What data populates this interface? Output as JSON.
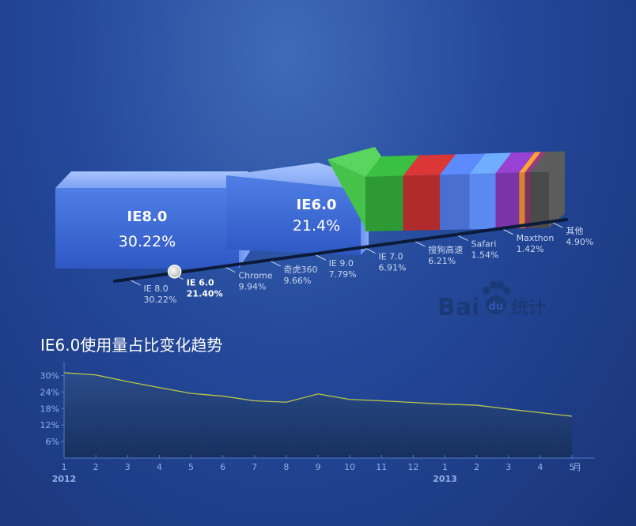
{
  "logo": {
    "text": "Bai",
    "paw_text": "du",
    "suffix": "统计"
  },
  "chart_data": [
    {
      "type": "bar",
      "subtype": "3d-stacked-share",
      "categories": [
        "IE 8.0",
        "IE 6.0",
        "Chrome",
        "奇虎360",
        "IE 9.0",
        "IE 7.0",
        "搜狗高速",
        "Safari",
        "Maxthon",
        "其他"
      ],
      "value_labels": [
        "30.22%",
        "21.40%",
        "9.94%",
        "9.66%",
        "7.79%",
        "6.91%",
        "6.21%",
        "1.54%",
        "1.42%",
        "4.90%"
      ],
      "values": [
        30.22,
        21.4,
        9.94,
        9.66,
        7.79,
        6.91,
        6.21,
        1.54,
        1.42,
        4.9
      ],
      "colors": [
        "#3f6ed8",
        "#3f6ed8",
        "#2e9a34",
        "#b02c2c",
        "#4a6fd0",
        "#5a8af0",
        "#7a34a8",
        "#d8822c",
        "#7a3060",
        "#4a4a4a"
      ],
      "selected_index": 1,
      "boxes": [
        {
          "name": "IE8.0",
          "value": "30.22%"
        },
        {
          "name": "IE6.0",
          "value": "21.4%"
        }
      ]
    },
    {
      "type": "area",
      "title": "IE6.0使用量占比变化趋势",
      "x": [
        "1",
        "2",
        "3",
        "4",
        "5",
        "6",
        "7",
        "8",
        "9",
        "10",
        "11",
        "12",
        "1",
        "2",
        "3",
        "4",
        "5"
      ],
      "year_labels": [
        {
          "index": 0,
          "label": "2012"
        },
        {
          "index": 12,
          "label": "2013"
        }
      ],
      "x_unit": "月",
      "y_ticks": [
        "30%",
        "24%",
        "18%",
        "12%",
        "6%"
      ],
      "ylim": [
        0,
        35
      ],
      "values": [
        31.0,
        30.2,
        27.8,
        25.6,
        23.5,
        22.5,
        20.8,
        20.3,
        23.3,
        21.3,
        20.8,
        20.2,
        19.6,
        19.2,
        17.8,
        16.5,
        15.2
      ],
      "line_color": "#b9c64a"
    }
  ]
}
